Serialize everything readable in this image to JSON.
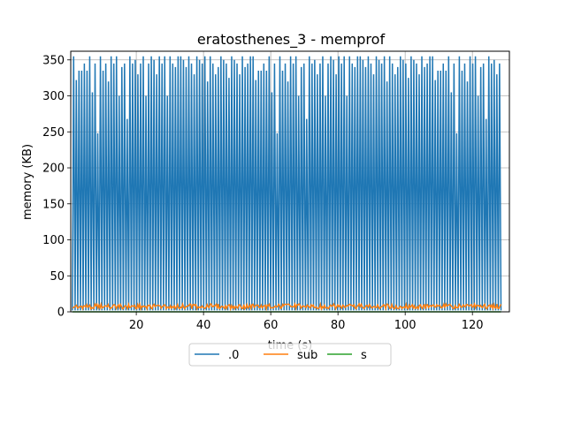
{
  "chart_data": {
    "type": "line",
    "title": "eratosthenes_3 - memprof",
    "xlabel": "time (s)",
    "ylabel": "memory (KB)",
    "xlim": [
      0.5,
      131
    ],
    "ylim": [
      0,
      362
    ],
    "x_ticks": [
      20,
      40,
      60,
      80,
      100,
      120
    ],
    "y_ticks": [
      0,
      50,
      100,
      150,
      200,
      250,
      300,
      350
    ],
    "grid": true,
    "legend_position": "below-center",
    "series": [
      {
        "name": ".0",
        "color": "#1f77b4",
        "pattern": "sawtooth oscillation from ~2 to ~350 KB",
        "peak_values": [
          355,
          322,
          335,
          335,
          345,
          335,
          355,
          305,
          345,
          248,
          355,
          335,
          345,
          320,
          355,
          345,
          355,
          300,
          340,
          345,
          268,
          355,
          345,
          350,
          330,
          345,
          355,
          300,
          345,
          355,
          350,
          330,
          355,
          345,
          355,
          300,
          355,
          345,
          340,
          355,
          355,
          350,
          340,
          355,
          345,
          330,
          355,
          350,
          345,
          355,
          320,
          355,
          345,
          330,
          340,
          355,
          350,
          345,
          325,
          355,
          350,
          345,
          330,
          355,
          340,
          345,
          355
        ],
        "trough_value": 2,
        "x_start": 1.0,
        "x_end": 128.5
      },
      {
        "name": "sub",
        "color": "#ff7f0e",
        "pattern": "low noise between ~4 and ~11 KB",
        "values_range": [
          4,
          11
        ],
        "x_start": 1.0,
        "x_end": 128.5
      },
      {
        "name": "s",
        "color": "#2ca02c",
        "values_range": [
          0,
          0
        ],
        "x_start": 1.0,
        "x_end": 128.5
      }
    ]
  }
}
